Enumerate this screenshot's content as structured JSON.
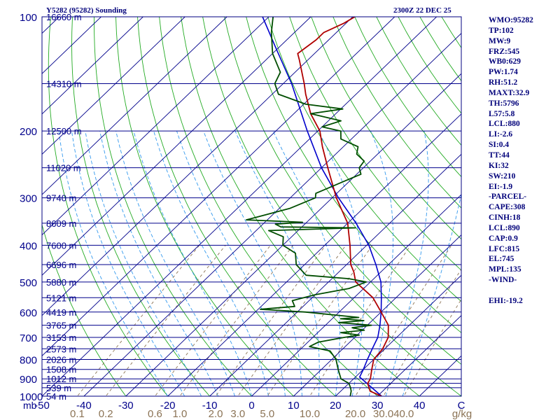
{
  "header": {
    "title": "Y5282 (95282) Sounding",
    "valid_time": "2300Z 22 DEC 25"
  },
  "indices": [
    "WMO:95282",
    "TP:102",
    "MW:9",
    "FRZ:545",
    "WB0:629",
    "PW:1.74",
    "RH:51.2",
    "MAXT:32.9",
    "TH:5796",
    "L57:5.8",
    "LCL:880",
    "LI:-2.6",
    "SI:0.4",
    "TT:44",
    "KI:32",
    "SW:210",
    "EI:-1.9",
    "-PARCEL-",
    "CAPE:308",
    "CINH:18",
    "LCL:890",
    "CAP:0.9",
    "LFC:815",
    "EL:745",
    "MPL:135",
    "-WIND-",
    "",
    "EHI:-19.2"
  ],
  "colors": {
    "isobar": "#00008b",
    "isotherm": "#00008b",
    "dry_adiabat": "#22aa22",
    "moist_adiabat": "#3399ee",
    "mixing_ratio": "#8b7355",
    "temperature": "#b00000",
    "dewpoint": "#004d00",
    "parcel": "#0000cc",
    "axis_text": "#00008b",
    "mixing_text": "#8b7355"
  },
  "chart_data": {
    "type": "skew-t",
    "title": "Y5282 (95282) Sounding",
    "pressure_unit": "mb",
    "temperature_unit": "C",
    "mixing_ratio_unit": "g/kg",
    "x_range": [
      -50,
      50
    ],
    "p_range": [
      1000,
      100
    ],
    "pressure_labels": [
      100,
      200,
      300,
      400,
      500,
      600,
      700,
      800,
      900,
      1000
    ],
    "isobars": [
      100,
      150,
      200,
      250,
      300,
      350,
      400,
      450,
      500,
      550,
      600,
      650,
      700,
      750,
      800,
      850,
      900,
      925,
      950,
      1000
    ],
    "height_labels": [
      {
        "p": 100,
        "text": "16660 m"
      },
      {
        "p": 150,
        "text": "14310 m"
      },
      {
        "p": 200,
        "text": "12500 m"
      },
      {
        "p": 250,
        "text": "11020 m"
      },
      {
        "p": 300,
        "text": "9740 m"
      },
      {
        "p": 350,
        "text": "8609 m"
      },
      {
        "p": 400,
        "text": "7600 m"
      },
      {
        "p": 450,
        "text": "6696 m"
      },
      {
        "p": 500,
        "text": "5880 m"
      },
      {
        "p": 550,
        "text": "5121 m"
      },
      {
        "p": 600,
        "text": "4419 m"
      },
      {
        "p": 650,
        "text": "3765 m"
      },
      {
        "p": 700,
        "text": "3153 m"
      },
      {
        "p": 750,
        "text": "2573 m"
      },
      {
        "p": 800,
        "text": "2026 m"
      },
      {
        "p": 850,
        "text": "1508 m"
      },
      {
        "p": 900,
        "text": "1012 m"
      },
      {
        "p": 950,
        "text": "539 m"
      },
      {
        "p": 1000,
        "text": "54 m"
      }
    ],
    "temp_ticks": [
      "-50",
      "-40",
      "-30",
      "-20",
      "-10",
      "0",
      "10",
      "20",
      "30",
      "40",
      "C"
    ],
    "mixing_ratio_ticks": [
      "0.1",
      "0.2",
      "0.6",
      "1.0",
      "2.0",
      "3.0",
      "5.0",
      "10.0",
      "20.0",
      "30.0",
      "40.0",
      "g/kg"
    ],
    "mixing_ratios": [
      0.1,
      0.2,
      0.6,
      1.0,
      2.0,
      3.0,
      5.0,
      10.0,
      20.0,
      30.0,
      40.0
    ],
    "temperature": [
      [
        1000,
        31.0
      ],
      [
        970,
        27.0
      ],
      [
        925,
        24.5
      ],
      [
        900,
        24.0
      ],
      [
        850,
        22.0
      ],
      [
        800,
        20.0
      ],
      [
        750,
        19.5
      ],
      [
        700,
        18.0
      ],
      [
        650,
        15.0
      ],
      [
        600,
        10.0
      ],
      [
        550,
        4.5
      ],
      [
        500,
        -3.5
      ],
      [
        470,
        -6.5
      ],
      [
        450,
        -9.0
      ],
      [
        400,
        -14.0
      ],
      [
        350,
        -20.0
      ],
      [
        300,
        -29.0
      ],
      [
        250,
        -38.5
      ],
      [
        220,
        -45.0
      ],
      [
        200,
        -49.5
      ],
      [
        180,
        -56.0
      ],
      [
        160,
        -62.0
      ],
      [
        150,
        -65.0
      ],
      [
        130,
        -72.0
      ],
      [
        125,
        -74.0
      ],
      [
        115,
        -73.0
      ],
      [
        110,
        -73.0
      ],
      [
        104,
        -70.5
      ],
      [
        100,
        -69.5
      ]
    ],
    "dewpoint": [
      [
        1000,
        23.5
      ],
      [
        970,
        22.5
      ],
      [
        950,
        21.5
      ],
      [
        925,
        20.0
      ],
      [
        900,
        17.0
      ],
      [
        850,
        14.0
      ],
      [
        800,
        11.0
      ],
      [
        760,
        7.5
      ],
      [
        740,
        1.5
      ],
      [
        720,
        2.5
      ],
      [
        700,
        7.5
      ],
      [
        690,
        10.5
      ],
      [
        680,
        5.5
      ],
      [
        670,
        10.5
      ],
      [
        660,
        7.0
      ],
      [
        650,
        11.0
      ],
      [
        640,
        2.5
      ],
      [
        632,
        8.0
      ],
      [
        625,
        2.0
      ],
      [
        620,
        6.0
      ],
      [
        600,
        -8.0
      ],
      [
        590,
        -19.5
      ],
      [
        580,
        -12.0
      ],
      [
        560,
        -14.0
      ],
      [
        540,
        -10.0
      ],
      [
        520,
        -3.5
      ],
      [
        500,
        -1.0
      ],
      [
        490,
        -6.0
      ],
      [
        480,
        -17.0
      ],
      [
        450,
        -22.0
      ],
      [
        420,
        -25.0
      ],
      [
        400,
        -30.0
      ],
      [
        380,
        -32.0
      ],
      [
        366,
        -37.0
      ],
      [
        360,
        -17.0
      ],
      [
        358,
        -35.0
      ],
      [
        352,
        -37.0
      ],
      [
        348,
        -31.0
      ],
      [
        343,
        -45.0
      ],
      [
        320,
        -37.5
      ],
      [
        300,
        -34.0
      ],
      [
        292,
        -35.0
      ],
      [
        270,
        -31.0
      ],
      [
        260,
        -29.0
      ],
      [
        250,
        -31.0
      ],
      [
        240,
        -31.5
      ],
      [
        230,
        -35.0
      ],
      [
        220,
        -36.5
      ],
      [
        210,
        -42.5
      ],
      [
        200,
        -44.5
      ],
      [
        195,
        -50.0
      ],
      [
        188,
        -47.0
      ],
      [
        180,
        -56.0
      ],
      [
        175,
        -49.5
      ],
      [
        170,
        -59.5
      ],
      [
        160,
        -68.5
      ],
      [
        150,
        -72.0
      ],
      [
        140,
        -73.5
      ],
      [
        125,
        -80.0
      ],
      [
        110,
        -85.5
      ],
      [
        100,
        -89.0
      ]
    ],
    "parcel": [
      [
        1000,
        31.0
      ],
      [
        890,
        21.0
      ],
      [
        850,
        20.0
      ],
      [
        800,
        18.5
      ],
      [
        750,
        17.0
      ],
      [
        700,
        15.5
      ],
      [
        650,
        13.0
      ],
      [
        600,
        10.0
      ],
      [
        550,
        6.5
      ],
      [
        500,
        2.5
      ],
      [
        450,
        -3.0
      ],
      [
        400,
        -9.5
      ],
      [
        350,
        -18.0
      ],
      [
        300,
        -28.5
      ],
      [
        250,
        -40.0
      ],
      [
        200,
        -52.5
      ],
      [
        150,
        -68.0
      ],
      [
        120,
        -81.0
      ],
      [
        100,
        -91.5
      ]
    ]
  }
}
